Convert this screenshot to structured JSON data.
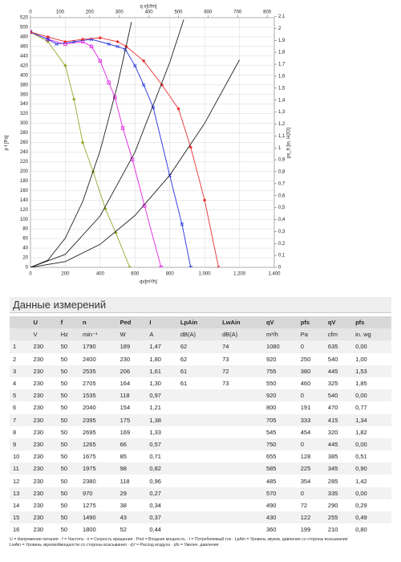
{
  "chart_data": {
    "type": "line",
    "x_label": "qv[m³/h]",
    "x2_label": "q v[cfm]",
    "y_label": "p f [Pa]",
    "y2_label": "ps_fl [in. H2O]",
    "xlim": [
      0,
      1400
    ],
    "xticks": [
      0,
      200,
      400,
      600,
      800,
      {
        "value": 1000,
        "label": "1.000"
      },
      {
        "value": 1200,
        "label": "1.200"
      },
      {
        "value": 1400,
        "label": "1.400"
      }
    ],
    "x2lim": [
      0,
      824
    ],
    "x2ticks": [
      0,
      100,
      200,
      300,
      400,
      500,
      600,
      700,
      800
    ],
    "ylim": [
      0,
      520
    ],
    "yticks": [
      0,
      20,
      40,
      60,
      80,
      100,
      120,
      140,
      160,
      180,
      200,
      220,
      240,
      260,
      280,
      300,
      320,
      340,
      360,
      380,
      400,
      420,
      440,
      460,
      480,
      500,
      520
    ],
    "y2lim": [
      0,
      2.09
    ],
    "y2ticks": [
      0,
      {
        "value": 0.1,
        "label": "0,1"
      },
      {
        "value": 0.2,
        "label": "0,2"
      },
      {
        "value": 0.3,
        "label": "0,3"
      },
      {
        "value": 0.4,
        "label": "0,4"
      },
      {
        "value": 0.5,
        "label": "0,5"
      },
      {
        "value": 0.6,
        "label": "0,6"
      },
      {
        "value": 0.7,
        "label": "0,7"
      },
      {
        "value": 0.8,
        "label": "0,8"
      },
      {
        "value": 0.9,
        "label": "0,9"
      },
      1,
      {
        "value": 1.1,
        "label": "1,1"
      },
      {
        "value": 1.2,
        "label": "1,2"
      },
      {
        "value": 1.3,
        "label": "1,3"
      },
      {
        "value": 1.4,
        "label": "1,4"
      },
      {
        "value": 1.5,
        "label": "1,5"
      },
      {
        "value": 1.6,
        "label": "1,6"
      },
      {
        "value": 1.7,
        "label": "1,7"
      },
      {
        "value": 1.8,
        "label": "1,8"
      },
      {
        "value": 1.9,
        "label": "1,9"
      },
      2,
      {
        "value": 2.1,
        "label": "2,1"
      }
    ],
    "grid": true,
    "series": [
      {
        "color": "#9aa52a",
        "marker": "diamond",
        "x": [
          0,
          100,
          200,
          250,
          300,
          360,
          430,
          490,
          570
        ],
        "values": [
          490,
          470,
          420,
          350,
          260,
          199,
          122,
          72,
          0
        ]
      },
      {
        "color": "#e020e0",
        "marker": "square",
        "x": [
          0,
          100,
          200,
          300,
          350,
          400,
          450,
          485,
          530,
          585,
          655,
          750
        ],
        "values": [
          490,
          475,
          465,
          470,
          460,
          430,
          385,
          354,
          290,
          225,
          128,
          0
        ]
      },
      {
        "color": "#2030e0",
        "marker": "x",
        "x": [
          0,
          100,
          150,
          250,
          350,
          450,
          500,
          545,
          600,
          650,
          705,
          800,
          870,
          920
        ],
        "values": [
          490,
          475,
          465,
          470,
          475,
          465,
          460,
          454,
          420,
          380,
          333,
          191,
          90,
          0
        ]
      },
      {
        "color": "#e83030",
        "marker": "diamond",
        "x": [
          0,
          100,
          200,
          300,
          400,
          500,
          550,
          650,
          755,
          850,
          920,
          1000,
          1080
        ],
        "values": [
          490,
          480,
          470,
          475,
          478,
          470,
          460,
          430,
          380,
          330,
          250,
          140,
          0
        ]
      },
      {
        "color": "#222222",
        "x": [
          0,
          200,
          400,
          600,
          800,
          1000,
          1200
        ],
        "values": [
          0,
          12,
          48,
          108,
          192,
          300,
          432
        ]
      },
      {
        "color": "#222222",
        "x": [
          0,
          200,
          400,
          600,
          800,
          880
        ],
        "values": [
          0,
          27,
          107,
          240,
          427,
          516
        ]
      },
      {
        "color": "#222222",
        "x": [
          0,
          100,
          200,
          300,
          400,
          500,
          580
        ],
        "values": [
          0,
          15,
          61,
          137,
          243,
          380,
          511
        ]
      }
    ]
  },
  "table": {
    "title": "Данные измерений",
    "header": [
      "U",
      "f",
      "n",
      "Ped",
      "I",
      "LpAin",
      "LwAin",
      "qV",
      "pfs",
      "qV",
      "pfs"
    ],
    "units": [
      "V",
      "Hz",
      "min⁻¹",
      "W",
      "A",
      "dB(A)",
      "dB(A)",
      "m³/h",
      "Pa",
      "cfm",
      "in. wg"
    ],
    "rows": [
      [
        "1",
        "230",
        "50",
        "1790",
        "189",
        "1,47",
        "62",
        "74",
        "1080",
        "0",
        "635",
        "0,00"
      ],
      [
        "2",
        "230",
        "50",
        "2400",
        "230",
        "1,80",
        "62",
        "73",
        "920",
        "250",
        "540",
        "1,00"
      ],
      [
        "3",
        "230",
        "50",
        "2535",
        "206",
        "1,61",
        "61",
        "72",
        "755",
        "380",
        "445",
        "1,53"
      ],
      [
        "4",
        "230",
        "50",
        "2705",
        "164",
        "1,30",
        "61",
        "73",
        "550",
        "460",
        "325",
        "1,85"
      ],
      [
        "5",
        "230",
        "50",
        "1535",
        "118",
        "0,97",
        null,
        null,
        "920",
        "0",
        "540",
        "0,00"
      ],
      [
        "6",
        "230",
        "50",
        "2040",
        "154",
        "1,21",
        null,
        null,
        "800",
        "191",
        "470",
        "0,77"
      ],
      [
        "7",
        "230",
        "50",
        "2395",
        "175",
        "1,38",
        null,
        null,
        "705",
        "333",
        "415",
        "1,34"
      ],
      [
        "8",
        "230",
        "50",
        "2695",
        "169",
        "1,33",
        null,
        null,
        "545",
        "454",
        "320",
        "1,82"
      ],
      [
        "9",
        "230",
        "50",
        "1265",
        "66",
        "0,57",
        null,
        null,
        "750",
        "0",
        "445",
        "0,00"
      ],
      [
        "10",
        "230",
        "50",
        "1675",
        "85",
        "0,71",
        null,
        null,
        "655",
        "128",
        "385",
        "0,51"
      ],
      [
        "11",
        "230",
        "50",
        "1975",
        "98",
        "0,82",
        null,
        null,
        "585",
        "225",
        "345",
        "0,90"
      ],
      [
        "12",
        "230",
        "50",
        "2380",
        "118",
        "0,96",
        null,
        null,
        "485",
        "354",
        "285",
        "1,42"
      ],
      [
        "13",
        "230",
        "50",
        "970",
        "29",
        "0,27",
        null,
        null,
        "570",
        "0",
        "335",
        "0,00"
      ],
      [
        "14",
        "230",
        "50",
        "1275",
        "38",
        "0,34",
        null,
        null,
        "490",
        "72",
        "290",
        "0,29"
      ],
      [
        "15",
        "230",
        "50",
        "1490",
        "43",
        "0,37",
        null,
        null,
        "430",
        "122",
        "255",
        "0,49"
      ],
      [
        "16",
        "230",
        "50",
        "1800",
        "52",
        "0,44",
        null,
        null,
        "360",
        "199",
        "210",
        "0,80"
      ]
    ],
    "notes": [
      "U = Напряжение питания · f = Частота · n = Скорость вращения · Ped = Входная мощность · I = Потребляемый ток · LpAin = Уровень звуков. давления со стороны всасывания",
      "LwAin = Уровень звуковоймощности со стороны всасывания · qV = Расход воздуха · pfs = Увелич. давления"
    ]
  }
}
